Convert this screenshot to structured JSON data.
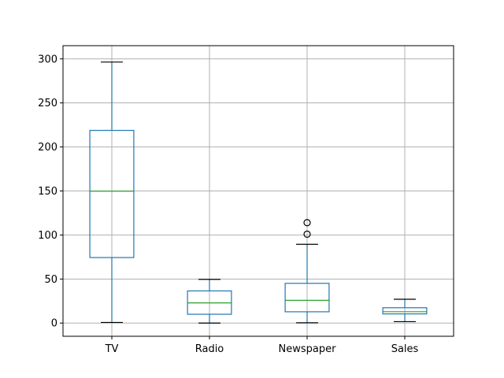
{
  "chart_data": {
    "type": "box",
    "title": "",
    "xlabel": "",
    "ylabel": "",
    "categories": [
      "TV",
      "Radio",
      "Newspaper",
      "Sales"
    ],
    "ylim": [
      -15,
      315
    ],
    "yticks": [
      0,
      50,
      100,
      150,
      200,
      250,
      300
    ],
    "grid": true,
    "boxes": [
      {
        "name": "TV",
        "whisker_low": 0.7,
        "q1": 74.4,
        "median": 149.8,
        "q3": 218.8,
        "whisker_high": 296.4,
        "outliers": []
      },
      {
        "name": "Radio",
        "whisker_low": 0.0,
        "q1": 10.0,
        "median": 22.9,
        "q3": 36.5,
        "whisker_high": 49.6,
        "outliers": []
      },
      {
        "name": "Newspaper",
        "whisker_low": 0.3,
        "q1": 12.8,
        "median": 25.8,
        "q3": 45.1,
        "whisker_high": 89.4,
        "outliers": [
          100.9,
          114.0
        ]
      },
      {
        "name": "Sales",
        "whisker_low": 1.6,
        "q1": 10.4,
        "median": 12.9,
        "q3": 17.4,
        "whisker_high": 27.0,
        "outliers": []
      }
    ],
    "colors": {
      "box": "#1f77b4",
      "median": "#2ca02c",
      "caps": "#000000",
      "grid": "#b0b0b0"
    }
  }
}
